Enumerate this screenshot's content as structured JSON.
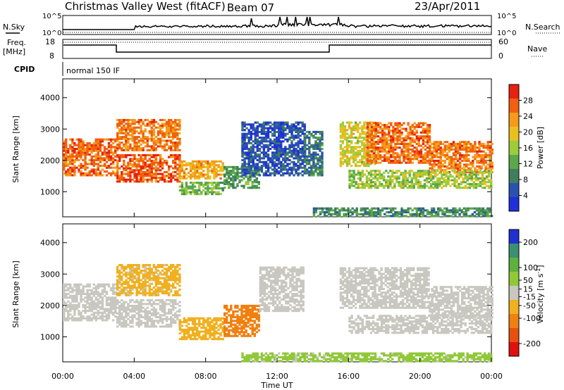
{
  "header": {
    "station_title": "Christmas Valley West (fitACF)",
    "beam": "Beam 07",
    "date": "23/Apr/2011"
  },
  "top_panels": {
    "nsky_label": "N.Sky",
    "nsearch_label": "N.Search",
    "noise_ticks_left": [
      "10^5",
      "10^0"
    ],
    "noise_ticks_right": [
      "10^5",
      "10^0"
    ],
    "freq_label_1": "Freq.",
    "freq_label_2": "[MHz]",
    "freq_ticks": [
      "18",
      "8"
    ],
    "nave_label": "Nave",
    "nave_ticks": [
      "60",
      "0"
    ],
    "cpid_label": "CPID",
    "cpid_value": "normal 150 IF"
  },
  "colors": {
    "noise_line": "#000000",
    "power_scale": [
      "#1f30d8",
      "#2a52b0",
      "#3f7f5f",
      "#5aa84a",
      "#9ccc3c",
      "#e8c020",
      "#f59a1a",
      "#f06010",
      "#e82010"
    ],
    "velocity_scale": [
      "#2030d0",
      "#3a9070",
      "#60b040",
      "#90c838",
      "#c8c8c0",
      "#f0b020",
      "#f08010",
      "#e85010",
      "#e01010"
    ]
  },
  "chart_data": [
    {
      "type": "heatmap",
      "quantity": "power",
      "xlabel": "",
      "ylabel": "Slant Range [km]",
      "x_ticks": [
        "00:00",
        "04:00",
        "08:00",
        "12:00",
        "16:00",
        "20:00",
        "00:00"
      ],
      "xlim_hours": [
        0,
        24
      ],
      "y_ticks": [
        1000,
        2000,
        3000,
        4000
      ],
      "ylim_km": [
        200,
        4600
      ],
      "colorbar_label": "Power [dB]",
      "colorbar_ticks": [
        4,
        8,
        12,
        16,
        20,
        24,
        28
      ],
      "colorbar_range": [
        0,
        32
      ],
      "bands": [
        {
          "t0": 0.0,
          "t1": 3.0,
          "r0": 1500,
          "r1": 2700,
          "value": 26
        },
        {
          "t0": 3.0,
          "t1": 6.5,
          "r0": 1300,
          "r1": 2200,
          "value": 27
        },
        {
          "t0": 3.0,
          "t1": 6.5,
          "r0": 2300,
          "r1": 3300,
          "value": 25
        },
        {
          "t0": 6.5,
          "t1": 9.0,
          "r0": 1400,
          "r1": 2000,
          "value": 22
        },
        {
          "t0": 6.5,
          "t1": 9.0,
          "r0": 900,
          "r1": 1300,
          "value": 14
        },
        {
          "t0": 9.0,
          "t1": 11.0,
          "r0": 1100,
          "r1": 1800,
          "value": 11
        },
        {
          "t0": 10.0,
          "t1": 13.5,
          "r0": 1500,
          "r1": 3200,
          "value": 5
        },
        {
          "t0": 13.5,
          "t1": 14.5,
          "r0": 1500,
          "r1": 2900,
          "value": 8
        },
        {
          "t0": 15.5,
          "t1": 17.5,
          "r0": 1800,
          "r1": 3200,
          "value": 18
        },
        {
          "t0": 17.0,
          "t1": 20.5,
          "r0": 1900,
          "r1": 3200,
          "value": 26
        },
        {
          "t0": 20.5,
          "t1": 24.0,
          "r0": 1600,
          "r1": 2600,
          "value": 25
        },
        {
          "t0": 16.0,
          "t1": 24.0,
          "r0": 1100,
          "r1": 1700,
          "value": 16
        },
        {
          "t0": 14.0,
          "t1": 24.0,
          "r0": 200,
          "r1": 500,
          "value": 10
        }
      ]
    },
    {
      "type": "heatmap",
      "quantity": "velocity",
      "xlabel": "Time UT",
      "ylabel": "Slant Range [km]",
      "x_ticks": [
        "00:00",
        "04:00",
        "08:00",
        "12:00",
        "16:00",
        "20:00",
        "00:00"
      ],
      "xlim_hours": [
        0,
        24
      ],
      "y_ticks": [
        1000,
        2000,
        3000,
        4000
      ],
      "ylim_km": [
        200,
        4600
      ],
      "colorbar_label": "Velocity [m s",
      "colorbar_label_sup": "-1",
      "colorbar_label_end": "]",
      "colorbar_ticks": [
        200,
        100,
        50,
        15,
        -15,
        -50,
        -100,
        -200
      ],
      "colorbar_range": [
        250,
        -250
      ],
      "bands": [
        {
          "t0": 0.0,
          "t1": 3.0,
          "r0": 1500,
          "r1": 2700,
          "value": 0
        },
        {
          "t0": 3.0,
          "t1": 6.5,
          "r0": 1300,
          "r1": 2200,
          "value": 0
        },
        {
          "t0": 3.0,
          "t1": 6.5,
          "r0": 2300,
          "r1": 3300,
          "value": -40
        },
        {
          "t0": 6.5,
          "t1": 9.0,
          "r0": 900,
          "r1": 1600,
          "value": -60
        },
        {
          "t0": 9.0,
          "t1": 11.0,
          "r0": 1000,
          "r1": 2000,
          "value": -120
        },
        {
          "t0": 11.0,
          "t1": 13.5,
          "r0": 1800,
          "r1": 3200,
          "value": 0
        },
        {
          "t0": 15.5,
          "t1": 20.5,
          "r0": 1900,
          "r1": 3200,
          "value": 0
        },
        {
          "t0": 20.5,
          "t1": 24.0,
          "r0": 1600,
          "r1": 2600,
          "value": 0
        },
        {
          "t0": 16.0,
          "t1": 24.0,
          "r0": 1100,
          "r1": 1700,
          "value": 0
        },
        {
          "t0": 10.0,
          "t1": 24.0,
          "r0": 200,
          "r1": 500,
          "value": 40
        }
      ]
    }
  ]
}
